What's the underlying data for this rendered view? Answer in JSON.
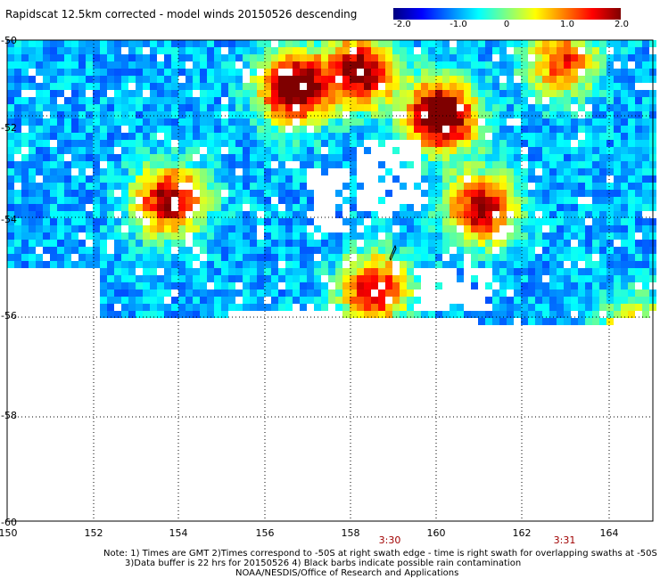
{
  "title": "Rapidscat 12.5km corrected - model winds 20150526 descending",
  "colorbar": {
    "labels": [
      "-2.0",
      "-1.0",
      "0",
      "1.0",
      "2.0"
    ]
  },
  "lat_labels": [
    "-50",
    "-52",
    "-54",
    "-56",
    "-58",
    "-60"
  ],
  "lon_labels": [
    "150",
    "152",
    "154",
    "156",
    "158",
    "160",
    "162",
    "164"
  ],
  "times": [
    "3:30",
    "3:31"
  ],
  "notes": [
    "Note: 1) Times are GMT 2)Times correspond to -50S at right swath edge - time is right swath for overlapping swaths at -50S",
    "3)Data buffer is 22 hrs for 20150526 4) Black barbs indicate possible rain contamination",
    "NOAA/NESDIS/Office of Research and Applications"
  ]
}
